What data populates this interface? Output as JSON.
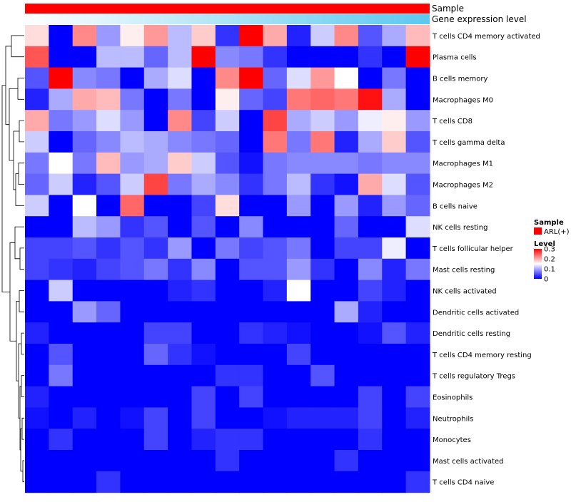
{
  "chart_data": {
    "type": "heatmap",
    "title": "",
    "annotation_rows": [
      {
        "label": "Sample",
        "color": "#ff0000"
      },
      {
        "label": "Gene expression level",
        "gradient": [
          "#ffffff",
          "#5bc8ef"
        ]
      }
    ],
    "legend": {
      "placement": "right",
      "sample_title": "Sample",
      "sample_item": "ARL(+)",
      "sample_color": "#ff0000",
      "level_title": "Level",
      "level_ticks": [
        "0.3",
        "0.2",
        "0.1",
        "0"
      ],
      "level_tick_values": [
        0.3,
        0.2,
        0.1,
        0
      ],
      "color_low": "#0000ff",
      "color_mid": "#ffffff",
      "color_high": "#ff0000",
      "range": [
        0,
        0.3
      ]
    },
    "columns": 17,
    "rows": [
      "T cells CD4 memory activated",
      "Plasma cells",
      "B cells memory",
      "Macrophages M0",
      "T cells CD8",
      "T cells gamma delta",
      "Macrophages M1",
      "Macrophages M2",
      "B cells naive",
      "NK cells resting",
      "T cells follicular helper",
      "Mast cells resting",
      "NK cells activated",
      "Dendritic cells activated",
      "Dendritic cells resting",
      "T cells CD4 memory resting",
      "T cells regulatory  Tregs",
      "Eosinophils",
      "Neutrophils",
      "Monocytes",
      "Mast cells activated",
      "T cells CD4 naive"
    ],
    "values": [
      [
        0.17,
        0.0,
        0.22,
        0.09,
        0.16,
        0.21,
        0.11,
        0.18,
        0.03,
        0.3,
        0.2,
        0.02,
        0.12,
        0.22,
        0.05,
        0.1,
        0.19
      ],
      [
        0.25,
        0.0,
        0.0,
        0.11,
        0.11,
        0.06,
        0.11,
        0.3,
        0.08,
        0.07,
        0.03,
        0.0,
        0.0,
        0.0,
        0.03,
        0.0,
        0.3
      ],
      [
        0.05,
        0.3,
        0.08,
        0.07,
        0.0,
        0.1,
        0.13,
        0.0,
        0.22,
        0.3,
        0.06,
        0.13,
        0.21,
        0.15,
        0.0,
        0.07,
        0.0
      ],
      [
        0.02,
        0.1,
        0.2,
        0.19,
        0.07,
        0.0,
        0.07,
        0.0,
        0.16,
        0.06,
        0.04,
        0.23,
        0.24,
        0.23,
        0.29,
        0.1,
        0.0
      ],
      [
        0.2,
        0.07,
        0.09,
        0.13,
        0.09,
        0.0,
        0.22,
        0.04,
        0.12,
        0.0,
        0.26,
        0.1,
        0.12,
        0.09,
        0.14,
        0.16,
        0.09
      ],
      [
        0.12,
        0.0,
        0.06,
        0.08,
        0.11,
        0.1,
        0.08,
        0.07,
        0.06,
        0.0,
        0.23,
        0.07,
        0.23,
        0.02,
        0.1,
        0.18,
        0.05
      ],
      [
        0.07,
        0.15,
        0.07,
        0.19,
        0.09,
        0.1,
        0.18,
        0.12,
        0.05,
        0.01,
        0.07,
        0.08,
        0.08,
        0.08,
        0.07,
        0.08,
        0.08
      ],
      [
        0.06,
        0.12,
        0.02,
        0.05,
        0.12,
        0.26,
        0.07,
        0.1,
        0.08,
        0.03,
        0.07,
        0.11,
        0.03,
        0.01,
        0.2,
        0.13,
        0.05
      ],
      [
        0.12,
        0.0,
        0.15,
        0.0,
        0.24,
        0.0,
        0.0,
        0.04,
        0.17,
        0.0,
        0.0,
        0.09,
        0.0,
        0.09,
        0.02,
        0.09,
        0.06
      ],
      [
        0.0,
        0.0,
        0.11,
        0.09,
        0.03,
        0.05,
        0.0,
        0.05,
        0.0,
        0.08,
        0.0,
        0.0,
        0.0,
        0.06,
        0.0,
        0.0,
        0.13
      ],
      [
        0.04,
        0.04,
        0.05,
        0.03,
        0.05,
        0.03,
        0.09,
        0.0,
        0.07,
        0.04,
        0.05,
        0.07,
        0.0,
        0.04,
        0.04,
        0.14,
        0.0
      ],
      [
        0.04,
        0.03,
        0.02,
        0.04,
        0.05,
        0.07,
        0.03,
        0.08,
        0.0,
        0.05,
        0.05,
        0.09,
        0.03,
        0.0,
        0.08,
        0.02,
        0.07
      ],
      [
        0.0,
        0.12,
        0.0,
        0.0,
        0.0,
        0.0,
        0.02,
        0.03,
        0.0,
        0.0,
        0.02,
        0.15,
        0.0,
        0.0,
        0.04,
        0.02,
        0.0
      ],
      [
        0.0,
        0.0,
        0.09,
        0.06,
        0.0,
        0.0,
        0.0,
        0.0,
        0.0,
        0.0,
        0.0,
        0.0,
        0.0,
        0.1,
        0.02,
        0.0,
        0.0
      ],
      [
        0.02,
        0.0,
        0.0,
        0.0,
        0.0,
        0.04,
        0.04,
        0.0,
        0.0,
        0.03,
        0.02,
        0.01,
        0.0,
        0.0,
        0.01,
        0.05,
        0.02
      ],
      [
        0.0,
        0.05,
        0.0,
        0.0,
        0.0,
        0.06,
        0.03,
        0.01,
        0.0,
        0.0,
        0.0,
        0.04,
        0.0,
        0.0,
        0.0,
        0.0,
        0.0
      ],
      [
        0.0,
        0.07,
        0.0,
        0.0,
        0.0,
        0.0,
        0.0,
        0.0,
        0.03,
        0.03,
        0.0,
        0.0,
        0.05,
        0.0,
        0.0,
        0.0,
        0.0
      ],
      [
        0.02,
        0.0,
        0.0,
        0.0,
        0.0,
        0.0,
        0.0,
        0.04,
        0.0,
        0.04,
        0.0,
        0.0,
        0.0,
        0.0,
        0.04,
        0.0,
        0.04
      ],
      [
        0.01,
        0.0,
        0.02,
        0.0,
        0.01,
        0.04,
        0.0,
        0.04,
        0.0,
        0.0,
        0.01,
        0.02,
        0.02,
        0.02,
        0.04,
        0.0,
        0.02
      ],
      [
        0.0,
        0.03,
        0.0,
        0.0,
        0.0,
        0.04,
        0.0,
        0.02,
        0.03,
        0.03,
        0.0,
        0.0,
        0.0,
        0.0,
        0.03,
        0.0,
        0.0
      ],
      [
        0.0,
        0.0,
        0.0,
        0.0,
        0.0,
        0.0,
        0.0,
        0.0,
        0.03,
        0.0,
        0.0,
        0.0,
        0.0,
        0.03,
        0.0,
        0.0,
        0.0
      ],
      [
        0.0,
        0.0,
        0.0,
        0.03,
        0.0,
        0.0,
        0.0,
        0.0,
        0.0,
        0.0,
        0.0,
        0.0,
        0.0,
        0.0,
        0.0,
        0.0,
        0.03
      ]
    ]
  }
}
